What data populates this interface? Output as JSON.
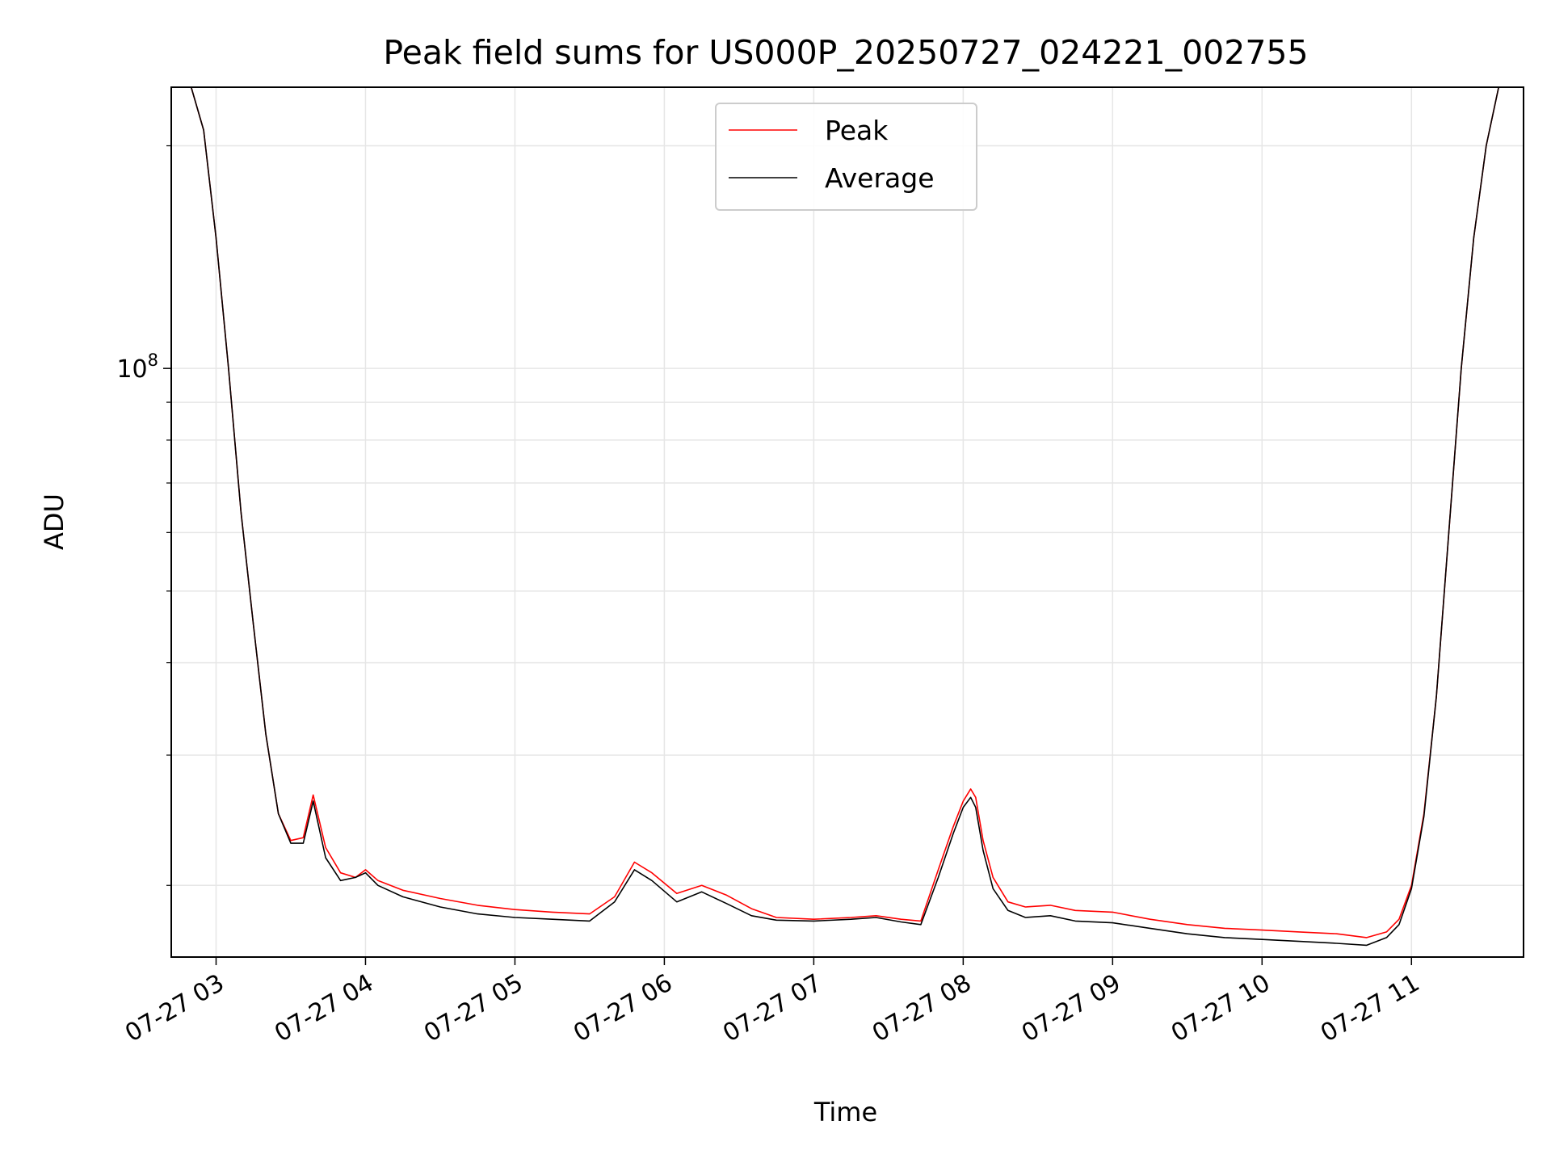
{
  "chart_data": {
    "type": "line",
    "title": "Peak field sums for US000P_20250727_024221_002755",
    "xlabel": "Time",
    "ylabel": "ADU",
    "yscale": "log",
    "grid": true,
    "legend_position": "top-center",
    "x_ticks": [
      "07-27 03",
      "07-27 04",
      "07-27 05",
      "07-27 06",
      "07-27 07",
      "07-27 08",
      "07-27 09",
      "07-27 10",
      "07-27 11"
    ],
    "y_tick_label": "10^8",
    "xlim": [
      "2025-07-27 02:42",
      "2025-07-27 11:45"
    ],
    "ylim": [
      16000000,
      240000000
    ],
    "series": [
      {
        "name": "Peak",
        "color": "#ff0000",
        "x": [
          "02:42",
          "02:50",
          "02:55",
          "03:00",
          "03:05",
          "03:10",
          "03:15",
          "03:20",
          "03:25",
          "03:30",
          "03:35",
          "03:39",
          "03:44",
          "03:50",
          "03:56",
          "04:00",
          "04:05",
          "04:15",
          "04:30",
          "04:45",
          "05:00",
          "05:15",
          "05:30",
          "05:40",
          "05:48",
          "05:55",
          "06:05",
          "06:15",
          "06:25",
          "06:35",
          "06:45",
          "07:00",
          "07:15",
          "07:25",
          "07:35",
          "07:43",
          "07:50",
          "07:56",
          "08:00",
          "08:03",
          "08:05",
          "08:08",
          "08:12",
          "08:18",
          "08:25",
          "08:35",
          "08:45",
          "09:00",
          "09:15",
          "09:30",
          "09:45",
          "10:00",
          "10:15",
          "10:30",
          "10:42",
          "10:50",
          "10:55",
          "11:00",
          "11:05",
          "11:10",
          "11:15",
          "11:20",
          "11:25",
          "11:30",
          "11:35",
          "11:40",
          "11:45"
        ],
        "values": [
          240000000,
          240000000,
          210000000,
          150000000,
          100000000,
          64000000,
          45000000,
          32000000,
          25000000,
          23000000,
          23200000,
          26500000,
          22500000,
          20800000,
          20500000,
          21000000,
          20300000,
          19700000,
          19200000,
          18800000,
          18550000,
          18400000,
          18300000,
          19300000,
          21500000,
          20800000,
          19500000,
          20000000,
          19400000,
          18600000,
          18100000,
          18000000,
          18100000,
          18200000,
          18000000,
          17900000,
          21000000,
          24000000,
          26000000,
          27000000,
          26300000,
          23000000,
          20500000,
          19000000,
          18700000,
          18800000,
          18500000,
          18400000,
          18000000,
          17700000,
          17500000,
          17400000,
          17300000,
          17200000,
          17000000,
          17300000,
          18000000,
          20000000,
          25000000,
          36000000,
          60000000,
          100000000,
          150000000,
          200000000,
          240000000,
          240000000,
          240000000
        ]
      },
      {
        "name": "Average",
        "color": "#000000",
        "x": [
          "02:42",
          "02:50",
          "02:55",
          "03:00",
          "03:05",
          "03:10",
          "03:15",
          "03:20",
          "03:25",
          "03:30",
          "03:35",
          "03:39",
          "03:44",
          "03:50",
          "03:56",
          "04:00",
          "04:05",
          "04:15",
          "04:30",
          "04:45",
          "05:00",
          "05:15",
          "05:30",
          "05:40",
          "05:48",
          "05:55",
          "06:05",
          "06:15",
          "06:25",
          "06:35",
          "06:45",
          "07:00",
          "07:15",
          "07:25",
          "07:35",
          "07:43",
          "07:50",
          "07:56",
          "08:00",
          "08:03",
          "08:05",
          "08:08",
          "08:12",
          "08:18",
          "08:25",
          "08:35",
          "08:45",
          "09:00",
          "09:15",
          "09:30",
          "09:45",
          "10:00",
          "10:15",
          "10:30",
          "10:42",
          "10:50",
          "10:55",
          "11:00",
          "11:05",
          "11:10",
          "11:15",
          "11:20",
          "11:25",
          "11:30",
          "11:35",
          "11:40",
          "11:45"
        ],
        "values": [
          240000000,
          240000000,
          210000000,
          150000000,
          100000000,
          64000000,
          45000000,
          32000000,
          25000000,
          22800000,
          22800000,
          26000000,
          21800000,
          20300000,
          20500000,
          20800000,
          20000000,
          19300000,
          18700000,
          18300000,
          18100000,
          18000000,
          17900000,
          19000000,
          21000000,
          20300000,
          19000000,
          19600000,
          18900000,
          18200000,
          17950000,
          17900000,
          18000000,
          18100000,
          17850000,
          17700000,
          20500000,
          23500000,
          25500000,
          26300000,
          25500000,
          22300000,
          19800000,
          18500000,
          18100000,
          18200000,
          17900000,
          17800000,
          17500000,
          17200000,
          17000000,
          16900000,
          16800000,
          16700000,
          16600000,
          17000000,
          17700000,
          19800000,
          24800000,
          36000000,
          60000000,
          100000000,
          150000000,
          200000000,
          240000000,
          240000000,
          240000000
        ]
      }
    ]
  }
}
